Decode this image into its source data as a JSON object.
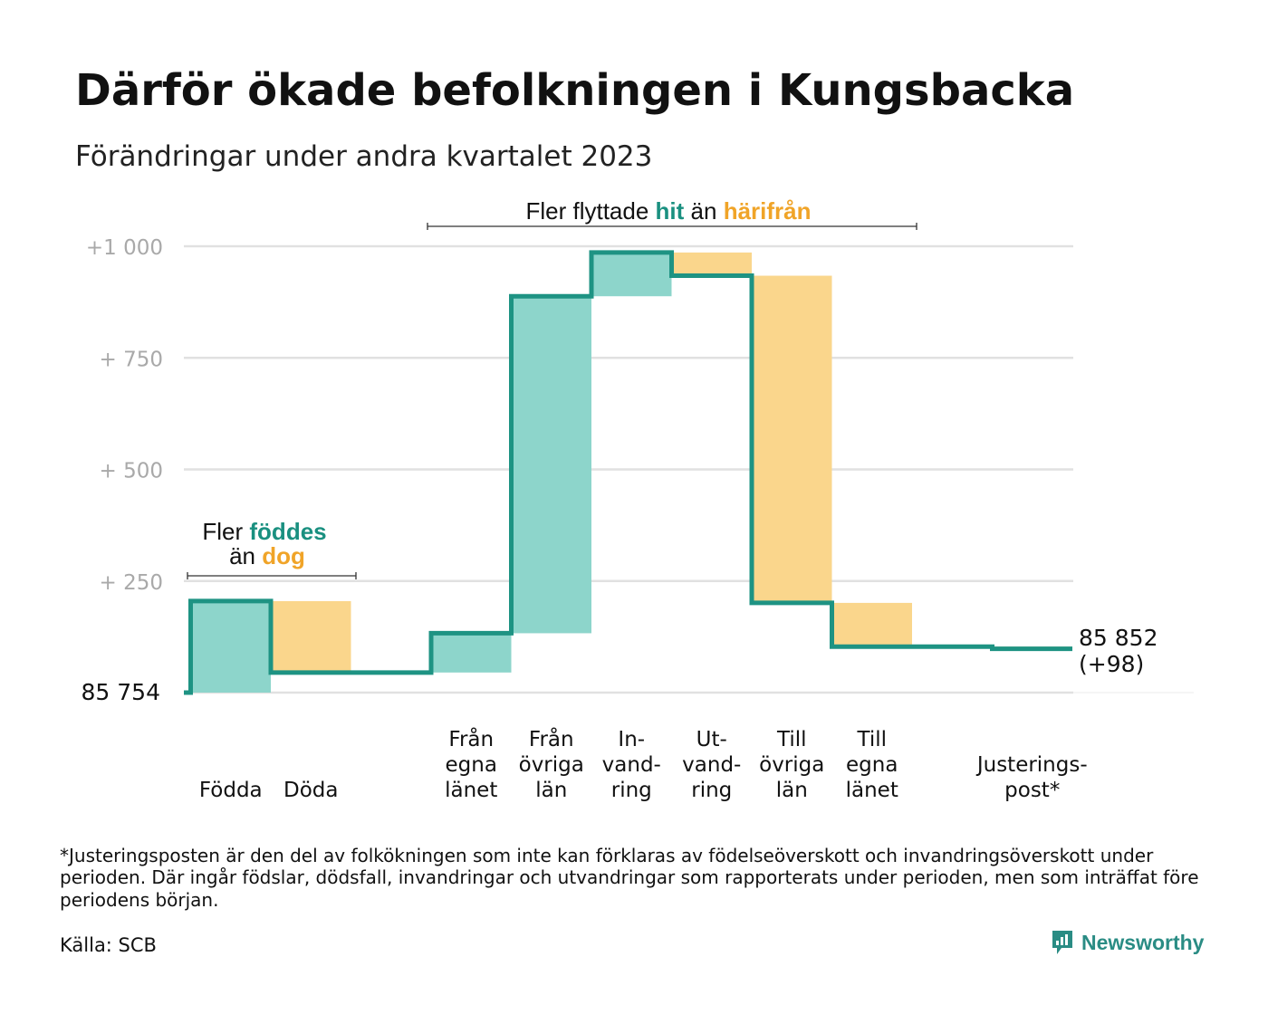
{
  "title": "Därför ökade befolkningen i Kungsbacka",
  "subtitle": "Förändringar under andra kvartalet 2023",
  "footnote": "*Justeringsposten är den del av folkökningen som inte kan förklaras av födelseöverskott och invandringsöverskott under perioden. Där ingår födslar, dödsfall, invandringar och utvandringar som rapporterats under perioden, men som inträffat före periodens början.",
  "source": "Källa: SCB",
  "brand": "Newsworthy",
  "colors": {
    "increase": "#8dd5cb",
    "decrease": "#fad68c",
    "line": "#1e9383",
    "accent_teal": "#1a9080",
    "accent_orange": "#f0a428",
    "grid": "#e1e1e1"
  },
  "annotations": {
    "births": {
      "prefix": "Fler",
      "highlight1": "föddes",
      "middle": "än",
      "highlight2": "dog"
    },
    "migration": {
      "prefix": "Fler flyttade",
      "highlight1": "hit",
      "middle": "än",
      "highlight2": "härifrån"
    }
  },
  "chart_data": {
    "type": "waterfall",
    "start_label": "85 754",
    "end_label": "85 852",
    "end_change_label": "(+98)",
    "y_tick_labels": [
      "+1 000",
      "+ 750",
      "+ 500",
      "+ 250"
    ],
    "y_ticks": [
      1000,
      750,
      500,
      250
    ],
    "ylim": [
      0,
      1000
    ],
    "baseline": 85754,
    "steps": [
      {
        "category": "Födda",
        "lines": [
          "Födda"
        ],
        "change": 205
      },
      {
        "category": "Döda",
        "lines": [
          "Döda"
        ],
        "change": -160
      },
      {
        "category": "",
        "lines": [],
        "change": 0
      },
      {
        "category": "Från egna länet",
        "lines": [
          "Från",
          "egna",
          "länet"
        ],
        "change": 88
      },
      {
        "category": "Från övriga län",
        "lines": [
          "Från",
          "övriga",
          "län"
        ],
        "change": 755
      },
      {
        "category": "In-vandring",
        "lines": [
          "In-",
          "vand-",
          "ring"
        ],
        "change": 98
      },
      {
        "category": "Ut-vandring",
        "lines": [
          "Ut-",
          "vand-",
          "ring"
        ],
        "change": -52
      },
      {
        "category": "Till övriga län",
        "lines": [
          "Till",
          "övriga",
          "län"
        ],
        "change": -733
      },
      {
        "category": "Till egna länet",
        "lines": [
          "Till",
          "egna",
          "länet"
        ],
        "change": -98
      },
      {
        "category": "",
        "lines": [],
        "change": 0
      },
      {
        "category": "Justeringspost*",
        "lines": [
          "Justerings-",
          "post*"
        ],
        "change": -5
      }
    ]
  }
}
